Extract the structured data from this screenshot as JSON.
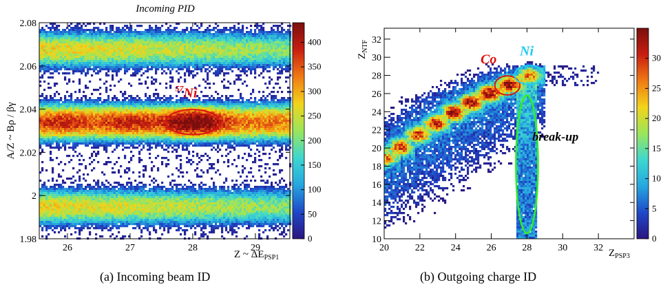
{
  "captions": [
    "(a)  Incoming beam ID",
    "(b)  Outgoing charge ID"
  ],
  "colors": {
    "scale": [
      "#ffffff",
      "#2a147f",
      "#1f49c9",
      "#25a7df",
      "#3ed7d0",
      "#9ae65a",
      "#f2d41a",
      "#f07a14",
      "#c81e10",
      "#7a0e0e"
    ],
    "annotation_red": "#dd1111",
    "annotation_cyan": "#22ccee",
    "annotation_green": "#33ee22"
  },
  "chart_data": [
    {
      "type": "heatmap",
      "title": "Incoming PID",
      "xlabel": "Z ~ ΔE",
      "xlabel_sub": "PSP1",
      "ylabel": "A/Z ~ Bρ / βγ",
      "xlim": [
        25.55,
        29.55
      ],
      "ylim": [
        1.98,
        2.08
      ],
      "xticks": [
        26,
        27,
        28,
        29
      ],
      "xtick_labels": [
        "26",
        "27",
        "28",
        "29"
      ],
      "yticks": [
        1.98,
        2.0,
        2.02,
        2.04,
        2.06,
        2.08
      ],
      "ytick_labels": [
        "1.98",
        "2",
        "2.02",
        "2.04",
        "2.06",
        "2.08"
      ],
      "colorbar": {
        "min": 0,
        "max": 440,
        "ticks": [
          0,
          50,
          100,
          150,
          200,
          250,
          300,
          350,
          400
        ],
        "tick_labels": [
          "0",
          "50",
          "100",
          "150",
          "200",
          "250",
          "300",
          "350",
          "400"
        ]
      },
      "bands": [
        {
          "y": 2.034,
          "sigma_y": 0.0035,
          "peak_density": 120,
          "kind": "main"
        },
        {
          "y": 2.0675,
          "sigma_y": 0.0035,
          "peak_density": 55,
          "kind": "upper"
        },
        {
          "y": 1.995,
          "sigma_y": 0.0035,
          "peak_density": 55,
          "kind": "lower"
        }
      ],
      "blobs": [
        {
          "x": 25.9,
          "y": 2.034,
          "peak": 110
        },
        {
          "x": 26.95,
          "y": 2.034,
          "peak": 120
        },
        {
          "x": 28.0,
          "y": 2.034,
          "peak": 420
        }
      ],
      "annotations": [
        {
          "kind": "ellipse",
          "cx": 28.0,
          "cy": 2.034,
          "rx": 0.43,
          "ry": 0.0058,
          "color": "red"
        },
        {
          "kind": "label",
          "text": "Ni",
          "mass_superscript": "57",
          "x": 27.72,
          "y": 2.0455,
          "color": "red"
        }
      ]
    },
    {
      "type": "heatmap",
      "title": "",
      "xlabel": "Z",
      "xlabel_sub": "PSP3",
      "ylabel": "Z",
      "ylabel_sub": "NTF",
      "xlim": [
        20,
        34
      ],
      "ylim": [
        10,
        33.2
      ],
      "xticks": [
        20,
        22,
        24,
        26,
        28,
        30,
        32
      ],
      "xtick_labels": [
        "20",
        "22",
        "24",
        "26",
        "28",
        "30",
        "32"
      ],
      "yticks": [
        10,
        12,
        14,
        16,
        18,
        20,
        22,
        24,
        26,
        28,
        30,
        32
      ],
      "ytick_labels": [
        "10",
        "12",
        "14",
        "16",
        "18",
        "20",
        "22",
        "24",
        "26",
        "28",
        "30",
        "32"
      ],
      "colorbar": {
        "min": 0,
        "max": 35,
        "ticks": [
          0,
          5,
          10,
          15,
          20,
          25,
          30
        ],
        "tick_labels": [
          "0",
          "5",
          "10",
          "15",
          "20",
          "25",
          "30"
        ]
      },
      "peaks": [
        {
          "x": 20.1,
          "y": 18.9,
          "peak": 14
        },
        {
          "x": 20.9,
          "y": 20.1,
          "peak": 20
        },
        {
          "x": 21.9,
          "y": 21.5,
          "peak": 22
        },
        {
          "x": 22.9,
          "y": 22.7,
          "peak": 26
        },
        {
          "x": 23.9,
          "y": 23.9,
          "peak": 30
        },
        {
          "x": 24.9,
          "y": 25.0,
          "peak": 30
        },
        {
          "x": 25.9,
          "y": 26.0,
          "peak": 31
        },
        {
          "x": 27.0,
          "y": 27.0,
          "peak": 32
        },
        {
          "x": 28.1,
          "y": 28.1,
          "peak": 14
        }
      ],
      "annotations": [
        {
          "kind": "ellipse",
          "cx": 26.9,
          "cy": 26.9,
          "rx": 0.7,
          "ry": 1.05,
          "color": "red"
        },
        {
          "kind": "ellipse",
          "cx": 28.15,
          "cy": 28.05,
          "rx": 0.85,
          "ry": 1.05,
          "color": "cyan"
        },
        {
          "kind": "ellipse",
          "cx": 28.0,
          "cy": 18.2,
          "rx": 0.62,
          "ry": 7.6,
          "color": "green"
        },
        {
          "kind": "label",
          "text": "Co",
          "x": 25.4,
          "y": 29.3,
          "color": "red"
        },
        {
          "kind": "label",
          "text": "Ni",
          "x": 27.6,
          "y": 30.2,
          "color": "cyan"
        },
        {
          "kind": "label",
          "text": "break-up",
          "x": 28.3,
          "y": 20.8,
          "color": "black"
        }
      ]
    }
  ]
}
